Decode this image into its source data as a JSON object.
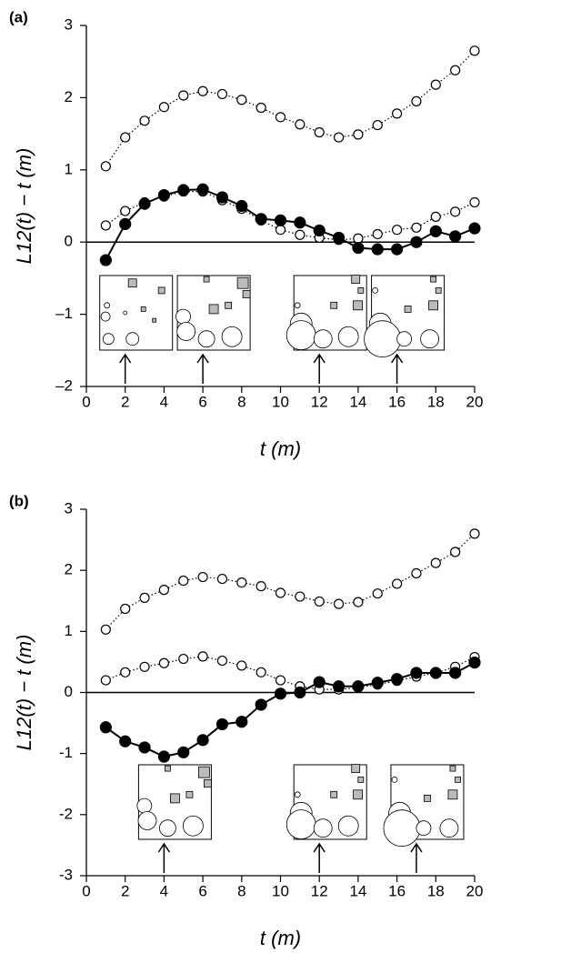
{
  "chart_data": [
    {
      "type": "line",
      "panel_label": "(a)",
      "ylabel": "L12(t) − t (m)",
      "xlabel": "t (m)",
      "x": [
        1,
        2,
        3,
        4,
        5,
        6,
        7,
        8,
        9,
        10,
        11,
        12,
        13,
        14,
        15,
        16,
        17,
        18,
        19,
        20
      ],
      "xlim": [
        0,
        20
      ],
      "xticks": [
        0,
        2,
        4,
        6,
        8,
        10,
        12,
        14,
        16,
        18,
        20
      ],
      "ylim": [
        -2,
        3
      ],
      "yticks": [
        {
          "value": -2,
          "label": "–2"
        },
        {
          "value": -1,
          "label": "–1"
        },
        0,
        1,
        2,
        3
      ],
      "hline": 0,
      "arrows_at": [
        2,
        6,
        12,
        16
      ],
      "series": [
        {
          "style": "dotted-open",
          "color": "#000000",
          "values": [
            1.05,
            1.45,
            1.68,
            1.87,
            2.03,
            2.09,
            2.05,
            1.97,
            1.86,
            1.73,
            1.63,
            1.52,
            1.45,
            1.49,
            1.62,
            1.78,
            1.95,
            2.18,
            2.38,
            2.65
          ]
        },
        {
          "style": "dotted-open",
          "color": "#000000",
          "values": [
            0.23,
            0.43,
            0.55,
            0.63,
            0.7,
            0.7,
            0.58,
            0.46,
            0.3,
            0.17,
            0.1,
            0.06,
            0.03,
            0.05,
            0.11,
            0.17,
            0.2,
            0.35,
            0.42,
            0.55
          ]
        },
        {
          "style": "solid-filled",
          "color": "#000000",
          "values": [
            -0.25,
            0.25,
            0.53,
            0.65,
            0.72,
            0.73,
            0.62,
            0.5,
            0.32,
            0.3,
            0.27,
            0.16,
            0.06,
            -0.08,
            -0.1,
            -0.1,
            0.0,
            0.15,
            0.08,
            0.19
          ]
        }
      ]
    },
    {
      "type": "line",
      "panel_label": "(b)",
      "ylabel": "L12(t) − t (m)",
      "xlabel": "t (m)",
      "x": [
        1,
        2,
        3,
        4,
        5,
        6,
        7,
        8,
        9,
        10,
        11,
        12,
        13,
        14,
        15,
        16,
        17,
        18,
        19,
        20
      ],
      "xlim": [
        0,
        20
      ],
      "xticks": [
        0,
        2,
        4,
        6,
        8,
        10,
        12,
        14,
        16,
        18,
        20
      ],
      "ylim": [
        -3,
        3
      ],
      "yticks": [
        -3,
        -2,
        -1,
        0,
        1,
        2,
        3
      ],
      "hline": 0,
      "arrows_at": [
        4,
        12,
        17
      ],
      "series": [
        {
          "style": "dotted-open",
          "color": "#000000",
          "values": [
            1.03,
            1.37,
            1.55,
            1.68,
            1.83,
            1.89,
            1.86,
            1.8,
            1.74,
            1.63,
            1.57,
            1.49,
            1.45,
            1.48,
            1.62,
            1.78,
            1.95,
            2.12,
            2.3,
            2.6
          ]
        },
        {
          "style": "dotted-open",
          "color": "#000000",
          "values": [
            0.2,
            0.33,
            0.42,
            0.48,
            0.55,
            0.59,
            0.52,
            0.44,
            0.33,
            0.2,
            0.1,
            0.05,
            0.05,
            0.08,
            0.13,
            0.19,
            0.26,
            0.32,
            0.42,
            0.58
          ]
        },
        {
          "style": "solid-filled",
          "color": "#000000",
          "values": [
            -0.57,
            -0.8,
            -0.9,
            -1.05,
            -0.98,
            -0.78,
            -0.52,
            -0.48,
            -0.2,
            -0.02,
            0.0,
            0.17,
            0.1,
            0.1,
            0.16,
            0.22,
            0.32,
            0.32,
            0.32,
            0.49
          ]
        }
      ]
    }
  ]
}
